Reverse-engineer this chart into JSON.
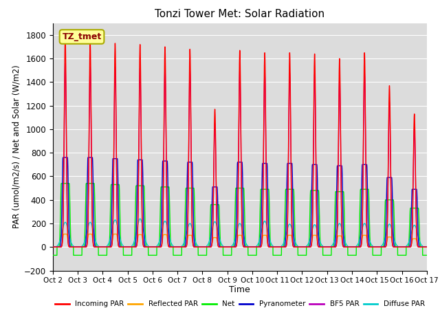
{
  "title": "Tonzi Tower Met: Solar Radiation",
  "xlabel": "Time",
  "ylabel": "PAR (umol/m2/s) / Net and Solar (W/m2)",
  "ylim": [
    -200,
    1900
  ],
  "yticks": [
    -200,
    0,
    200,
    400,
    600,
    800,
    1000,
    1200,
    1400,
    1600,
    1800
  ],
  "n_days": 15,
  "points_per_day": 288,
  "incoming_par_peaks": [
    1780,
    1740,
    1730,
    1720,
    1700,
    1680,
    1170,
    1670,
    1650,
    1650,
    1640,
    1600,
    1650,
    1370,
    1130
  ],
  "pyranometer_peaks": [
    760,
    760,
    750,
    740,
    730,
    720,
    510,
    720,
    710,
    710,
    700,
    690,
    700,
    590,
    490
  ],
  "bf5_par_peaks": [
    1560,
    1530,
    1530,
    1520,
    1510,
    1500,
    1050,
    1500,
    1480,
    1480,
    1470,
    1430,
    1480,
    1230,
    1010
  ],
  "net_peaks": [
    540,
    540,
    530,
    520,
    510,
    500,
    360,
    500,
    490,
    490,
    480,
    470,
    490,
    400,
    330
  ],
  "net_night": -70,
  "reflected_par_peaks": [
    110,
    110,
    110,
    105,
    105,
    100,
    80,
    100,
    100,
    100,
    100,
    95,
    100,
    85,
    70
  ],
  "diffuse_par_plateau": [
    210,
    210,
    230,
    240,
    220,
    200,
    215,
    200,
    220,
    195,
    190,
    200,
    200,
    195,
    185
  ],
  "colors": {
    "incoming_par": "#FF0000",
    "reflected_par": "#FFA500",
    "net": "#00EE00",
    "pyranometer": "#0000CC",
    "bf5_par": "#BB00BB",
    "diffuse_par": "#00CCCC"
  },
  "legend_labels": [
    "Incoming PAR",
    "Reflected PAR",
    "Net",
    "Pyranometer",
    "BF5 PAR",
    "Diffuse PAR"
  ],
  "annotation_text": "TZ_tmet",
  "bg_color": "#DCDCDC",
  "fig_bg_color": "#FFFFFF",
  "xtick_labels": [
    "Oct 2",
    "Oct 3",
    "Oct 4",
    "Oct 5",
    "Oct 6",
    "Oct 7",
    "Oct 8",
    "Oct 9",
    "Oct 10",
    "Oct 11",
    "Oct 12",
    "Oct 13",
    "Oct 14",
    "Oct 15",
    "Oct 16",
    "Oct 17"
  ],
  "grid_color": "#FFFFFF",
  "grid_linewidth": 0.8
}
